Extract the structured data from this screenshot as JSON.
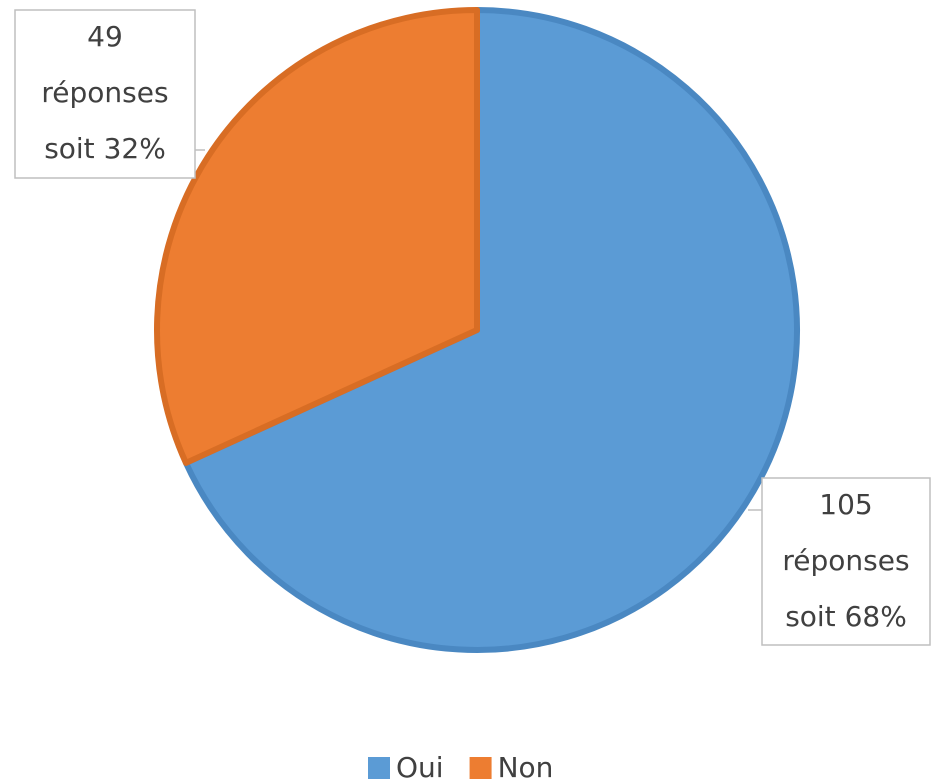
{
  "chart_data": {
    "type": "pie",
    "categories": [
      "Oui",
      "Non"
    ],
    "values": [
      105,
      49
    ],
    "value_labels": [
      [
        "105",
        "réponses",
        "soit 68%"
      ],
      [
        "49",
        "réponses",
        "soit 32%"
      ]
    ],
    "colors": [
      "#5b9bd5",
      "#ed7d31"
    ],
    "legend": "bottom"
  }
}
